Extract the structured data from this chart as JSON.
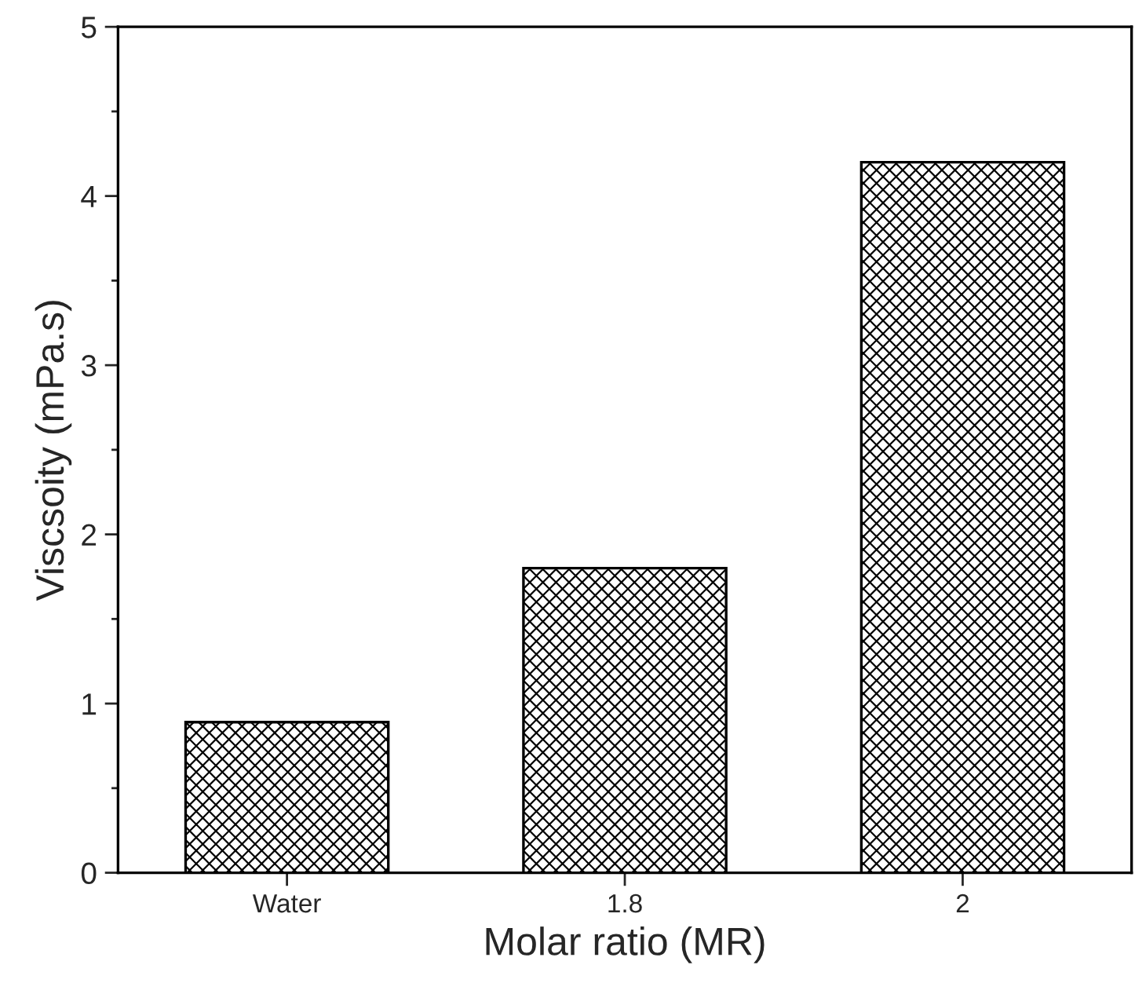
{
  "chart_data": {
    "type": "bar",
    "xlabel": "Molar ratio (MR)",
    "ylabel": "Viscsoity (mPa.s)",
    "categories": [
      "Water",
      "1.8",
      "2"
    ],
    "series": [
      {
        "color": "#000000",
        "values": [
          0.89,
          1.8,
          4.2
        ]
      }
    ],
    "ylim": [
      0,
      5
    ],
    "yticks": [
      0,
      1,
      2,
      3,
      4,
      5
    ],
    "grid": false
  }
}
